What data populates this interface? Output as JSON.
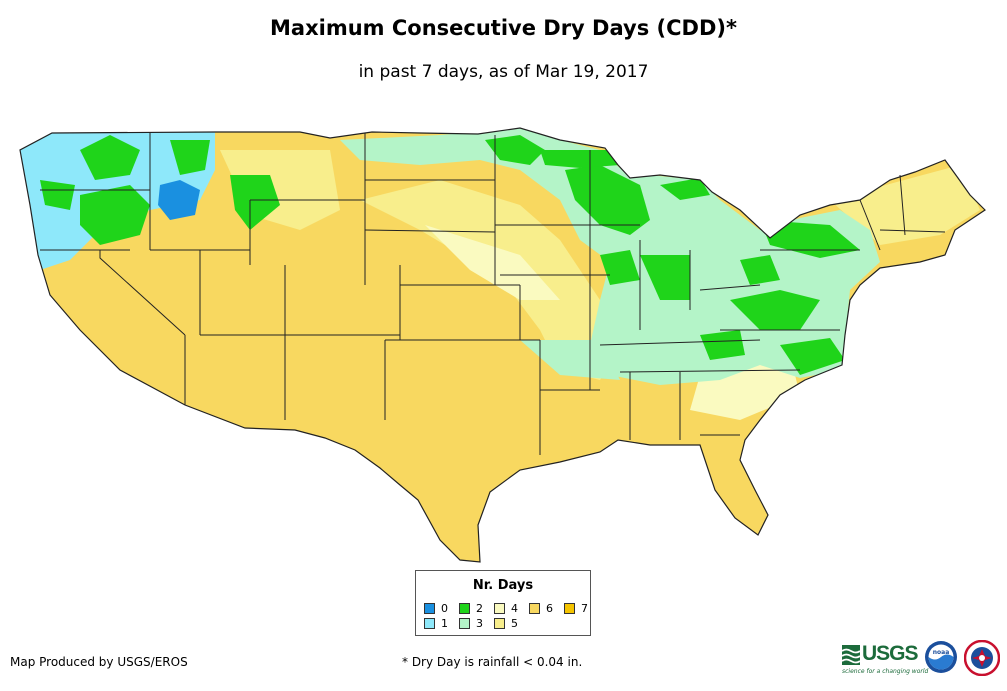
{
  "title": "Maximum Consecutive Dry Days (CDD)*",
  "subtitle": "in past 7 days, as of Mar 19, 2017",
  "legend": {
    "title": "Nr. Days",
    "items": [
      {
        "label": "0",
        "color": "#1a90e0"
      },
      {
        "label": "1",
        "color": "#8ee8fa"
      },
      {
        "label": "2",
        "color": "#1fd41a"
      },
      {
        "label": "3",
        "color": "#b4f4c8"
      },
      {
        "label": "4",
        "color": "#fafac0"
      },
      {
        "label": "5",
        "color": "#f8ee8c"
      },
      {
        "label": "6",
        "color": "#f8d860"
      },
      {
        "label": "7",
        "color": "#f5c400"
      }
    ]
  },
  "footer": {
    "credit": "Map Produced by USGS/EROS",
    "footnote": "* Dry Day is rainfall < 0.04 in."
  },
  "logos": {
    "usgs_text": "USGS",
    "usgs_tagline": "science for a changing world",
    "noaa_text": "noaa"
  }
}
